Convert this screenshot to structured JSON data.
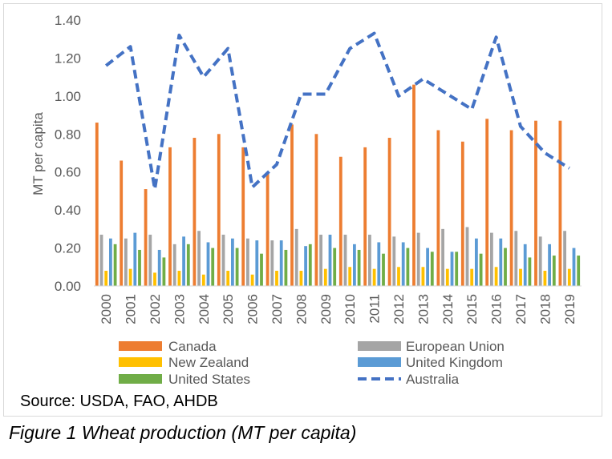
{
  "chart_data": {
    "type": "bar",
    "title": "",
    "xlabel": "",
    "ylabel": "MT per capita",
    "ylim": [
      0,
      1.4
    ],
    "yticks": [
      "0.00",
      "0.20",
      "0.40",
      "0.60",
      "0.80",
      "1.00",
      "1.20",
      "1.40"
    ],
    "grid": false,
    "legend_position": "bottom",
    "categories": [
      "2000",
      "2001",
      "2002",
      "2003",
      "2004",
      "2005",
      "2006",
      "2007",
      "2008",
      "2009",
      "2010",
      "2011",
      "2012",
      "2013",
      "2014",
      "2015",
      "2016",
      "2017",
      "2018",
      "2019"
    ],
    "series": [
      {
        "name": "Canada",
        "kind": "bar",
        "color": "#ed7d31",
        "values": [
          0.86,
          0.66,
          0.51,
          0.73,
          0.78,
          0.8,
          0.73,
          0.6,
          0.85,
          0.8,
          0.68,
          0.73,
          0.78,
          1.06,
          0.82,
          0.76,
          0.88,
          0.82,
          0.87,
          0.87
        ]
      },
      {
        "name": "European Union",
        "kind": "bar",
        "color": "#a5a5a5",
        "values": [
          0.27,
          0.25,
          0.27,
          0.22,
          0.29,
          0.27,
          0.25,
          0.24,
          0.3,
          0.27,
          0.27,
          0.27,
          0.26,
          0.28,
          0.3,
          0.31,
          0.28,
          0.29,
          0.26,
          0.29
        ]
      },
      {
        "name": "New Zealand",
        "kind": "bar",
        "color": "#ffc000",
        "values": [
          0.08,
          0.09,
          0.07,
          0.08,
          0.06,
          0.08,
          0.06,
          0.08,
          0.08,
          0.09,
          0.1,
          0.09,
          0.1,
          0.1,
          0.09,
          0.09,
          0.1,
          0.09,
          0.08,
          0.09
        ]
      },
      {
        "name": "United Kingdom",
        "kind": "bar",
        "color": "#5b9bd5",
        "values": [
          0.25,
          0.28,
          0.19,
          0.26,
          0.23,
          0.25,
          0.24,
          0.24,
          0.21,
          0.27,
          0.22,
          0.23,
          0.23,
          0.2,
          0.18,
          0.25,
          0.25,
          0.22,
          0.22,
          0.2
        ]
      },
      {
        "name": "United States",
        "kind": "bar",
        "color": "#70ad47",
        "values": [
          0.22,
          0.19,
          0.15,
          0.22,
          0.2,
          0.2,
          0.17,
          0.19,
          0.22,
          0.2,
          0.19,
          0.17,
          0.2,
          0.18,
          0.18,
          0.17,
          0.2,
          0.15,
          0.16,
          0.16
        ]
      },
      {
        "name": "Australia",
        "kind": "line",
        "color": "#4472c4",
        "values": [
          1.16,
          1.26,
          0.51,
          1.32,
          1.1,
          1.25,
          0.52,
          0.64,
          1.01,
          1.01,
          1.25,
          1.33,
          1.0,
          1.09,
          1.01,
          0.93,
          1.31,
          0.84,
          0.7,
          0.62
        ]
      }
    ],
    "legend_order": [
      "Canada",
      "European Union",
      "New Zealand",
      "United Kingdom",
      "United States",
      "Australia"
    ]
  },
  "source_text": "Source: USDA, FAO, AHDB",
  "caption_text": "Figure 1 Wheat production (MT per capita)"
}
